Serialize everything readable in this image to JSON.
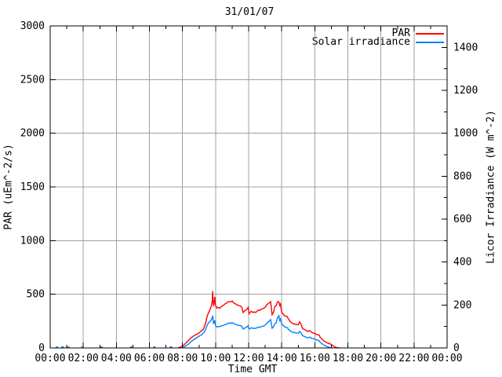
{
  "title": "31/01/07",
  "colors": {
    "par_line": "#ff0000",
    "solar_line": "#0080ff",
    "grid": "#a0a0a0",
    "axis": "#000000",
    "background": "#ffffff"
  },
  "chart_data": {
    "type": "line",
    "title": "31/01/07",
    "xlabel": "Time GMT",
    "ylabel_left": "PAR (uEm^-2/s)",
    "ylabel_right": "Licor Irradiance (W m^-2)",
    "x_range_hours": [
      0,
      24
    ],
    "x_major_step_hours": 2,
    "x_minor_step_hours": 1,
    "x_tick_labels": [
      "00:00",
      "02:00",
      "04:00",
      "06:00",
      "08:00",
      "10:00",
      "12:00",
      "14:00",
      "16:00",
      "18:00",
      "20:00",
      "22:00",
      "00:00"
    ],
    "y_left": {
      "range": [
        0,
        3000
      ],
      "ticks": [
        0,
        500,
        1000,
        1500,
        2000,
        2500,
        3000
      ]
    },
    "y_right": {
      "range": [
        0,
        1500
      ],
      "ticks": [
        0,
        200,
        400,
        600,
        800,
        1000,
        1200,
        1400
      ],
      "minor_step": 100
    },
    "grid": {
      "vertical_step_hours": 2,
      "horizontal_step_left_units": 500,
      "color": "#a0a0a0"
    },
    "legend_position": "top-right-inside",
    "series": [
      {
        "name": "PAR",
        "axis": "left",
        "units": "uEm^-2/s",
        "color": "#ff0000",
        "points": [
          [
            7.75,
            2
          ],
          [
            7.9,
            10
          ],
          [
            8.0,
            18
          ],
          [
            8.17,
            40
          ],
          [
            8.33,
            65
          ],
          [
            8.5,
            92
          ],
          [
            8.67,
            112
          ],
          [
            8.83,
            126
          ],
          [
            9.0,
            140
          ],
          [
            9.08,
            150
          ],
          [
            9.17,
            163
          ],
          [
            9.25,
            172
          ],
          [
            9.33,
            200
          ],
          [
            9.42,
            248
          ],
          [
            9.5,
            300
          ],
          [
            9.58,
            330
          ],
          [
            9.67,
            360
          ],
          [
            9.75,
            395
          ],
          [
            9.8,
            440
          ],
          [
            9.83,
            530
          ],
          [
            9.85,
            430
          ],
          [
            9.88,
            390
          ],
          [
            9.92,
            420
          ],
          [
            9.95,
            475
          ],
          [
            9.98,
            430
          ],
          [
            10.0,
            398
          ],
          [
            10.08,
            372
          ],
          [
            10.17,
            378
          ],
          [
            10.25,
            370
          ],
          [
            10.33,
            385
          ],
          [
            10.42,
            392
          ],
          [
            10.5,
            400
          ],
          [
            10.58,
            412
          ],
          [
            10.67,
            418
          ],
          [
            10.75,
            428
          ],
          [
            10.83,
            432
          ],
          [
            10.92,
            428
          ],
          [
            11.0,
            438
          ],
          [
            11.08,
            424
          ],
          [
            11.17,
            412
          ],
          [
            11.25,
            408
          ],
          [
            11.33,
            398
          ],
          [
            11.42,
            395
          ],
          [
            11.5,
            390
          ],
          [
            11.58,
            382
          ],
          [
            11.67,
            330
          ],
          [
            11.75,
            345
          ],
          [
            11.83,
            352
          ],
          [
            11.92,
            365
          ],
          [
            11.97,
            378
          ],
          [
            12.03,
            318
          ],
          [
            12.08,
            330
          ],
          [
            12.17,
            342
          ],
          [
            12.25,
            330
          ],
          [
            12.33,
            336
          ],
          [
            12.42,
            330
          ],
          [
            12.5,
            340
          ],
          [
            12.58,
            352
          ],
          [
            12.67,
            350
          ],
          [
            12.75,
            360
          ],
          [
            12.83,
            365
          ],
          [
            12.92,
            370
          ],
          [
            13.0,
            378
          ],
          [
            13.08,
            400
          ],
          [
            13.17,
            412
          ],
          [
            13.25,
            420
          ],
          [
            13.33,
            430
          ],
          [
            13.42,
            310
          ],
          [
            13.5,
            330
          ],
          [
            13.58,
            385
          ],
          [
            13.67,
            395
          ],
          [
            13.75,
            430
          ],
          [
            13.83,
            428
          ],
          [
            13.88,
            395
          ],
          [
            13.92,
            408
          ],
          [
            14.0,
            330
          ],
          [
            14.08,
            318
          ],
          [
            14.17,
            300
          ],
          [
            14.25,
            295
          ],
          [
            14.33,
            292
          ],
          [
            14.42,
            268
          ],
          [
            14.5,
            248
          ],
          [
            14.58,
            238
          ],
          [
            14.67,
            228
          ],
          [
            14.75,
            225
          ],
          [
            14.83,
            220
          ],
          [
            14.92,
            218
          ],
          [
            15.0,
            216
          ],
          [
            15.08,
            244
          ],
          [
            15.17,
            222
          ],
          [
            15.25,
            185
          ],
          [
            15.33,
            175
          ],
          [
            15.42,
            168
          ],
          [
            15.5,
            158
          ],
          [
            15.58,
            152
          ],
          [
            15.67,
            163
          ],
          [
            15.75,
            155
          ],
          [
            15.83,
            142
          ],
          [
            15.92,
            140
          ],
          [
            16.0,
            136
          ],
          [
            16.08,
            126
          ],
          [
            16.17,
            124
          ],
          [
            16.25,
            122
          ],
          [
            16.33,
            98
          ],
          [
            16.42,
            85
          ],
          [
            16.5,
            72
          ],
          [
            16.58,
            62
          ],
          [
            16.67,
            55
          ],
          [
            16.75,
            48
          ],
          [
            16.83,
            42
          ],
          [
            16.92,
            38
          ],
          [
            17.0,
            32
          ],
          [
            17.08,
            22
          ],
          [
            17.17,
            12
          ],
          [
            17.25,
            7
          ],
          [
            17.33,
            3
          ],
          [
            17.42,
            1
          ],
          [
            17.5,
            0
          ]
        ]
      },
      {
        "name": "Solar irradiance",
        "axis": "right",
        "units": "W m^-2",
        "color": "#0080ff",
        "points": [
          [
            8.0,
            2
          ],
          [
            8.17,
            8
          ],
          [
            8.33,
            16
          ],
          [
            8.5,
            28
          ],
          [
            8.67,
            38
          ],
          [
            8.83,
            46
          ],
          [
            9.0,
            55
          ],
          [
            9.17,
            62
          ],
          [
            9.33,
            76
          ],
          [
            9.42,
            90
          ],
          [
            9.5,
            108
          ],
          [
            9.58,
            118
          ],
          [
            9.67,
            124
          ],
          [
            9.75,
            132
          ],
          [
            9.83,
            150
          ],
          [
            9.88,
            112
          ],
          [
            9.95,
            128
          ],
          [
            10.0,
            103
          ],
          [
            10.08,
            98
          ],
          [
            10.17,
            100
          ],
          [
            10.25,
            99
          ],
          [
            10.33,
            102
          ],
          [
            10.42,
            104
          ],
          [
            10.5,
            106
          ],
          [
            10.58,
            109
          ],
          [
            10.67,
            111
          ],
          [
            10.75,
            114
          ],
          [
            10.83,
            116
          ],
          [
            10.92,
            115
          ],
          [
            11.0,
            118
          ],
          [
            11.08,
            114
          ],
          [
            11.17,
            111
          ],
          [
            11.25,
            109
          ],
          [
            11.33,
            106
          ],
          [
            11.42,
            105
          ],
          [
            11.5,
            104
          ],
          [
            11.58,
            102
          ],
          [
            11.67,
            88
          ],
          [
            11.75,
            92
          ],
          [
            11.83,
            95
          ],
          [
            11.92,
            99
          ],
          [
            11.97,
            104
          ],
          [
            12.03,
            88
          ],
          [
            12.08,
            90
          ],
          [
            12.17,
            94
          ],
          [
            12.25,
            91
          ],
          [
            12.33,
            92
          ],
          [
            12.42,
            91
          ],
          [
            12.5,
            94
          ],
          [
            12.58,
            97
          ],
          [
            12.67,
            96
          ],
          [
            12.75,
            99
          ],
          [
            12.83,
            101
          ],
          [
            12.92,
            103
          ],
          [
            13.0,
            106
          ],
          [
            13.08,
            114
          ],
          [
            13.17,
            120
          ],
          [
            13.25,
            126
          ],
          [
            13.33,
            132
          ],
          [
            13.42,
            92
          ],
          [
            13.5,
            98
          ],
          [
            13.58,
            112
          ],
          [
            13.67,
            118
          ],
          [
            13.75,
            142
          ],
          [
            13.83,
            150
          ],
          [
            13.88,
            128
          ],
          [
            13.92,
            135
          ],
          [
            14.0,
            110
          ],
          [
            14.08,
            106
          ],
          [
            14.17,
            99
          ],
          [
            14.25,
            96
          ],
          [
            14.33,
            95
          ],
          [
            14.42,
            86
          ],
          [
            14.5,
            80
          ],
          [
            14.58,
            76
          ],
          [
            14.67,
            73
          ],
          [
            14.75,
            72
          ],
          [
            14.83,
            70
          ],
          [
            14.92,
            69
          ],
          [
            15.0,
            68
          ],
          [
            15.08,
            77
          ],
          [
            15.17,
            70
          ],
          [
            15.25,
            58
          ],
          [
            15.33,
            55
          ],
          [
            15.42,
            52
          ],
          [
            15.5,
            49
          ],
          [
            15.58,
            47
          ],
          [
            15.67,
            50
          ],
          [
            15.75,
            48
          ],
          [
            15.83,
            44
          ],
          [
            15.92,
            43
          ],
          [
            16.0,
            42
          ],
          [
            16.08,
            38
          ],
          [
            16.17,
            36
          ],
          [
            16.25,
            34
          ],
          [
            16.33,
            26
          ],
          [
            16.42,
            21
          ],
          [
            16.5,
            16
          ],
          [
            16.58,
            12
          ],
          [
            16.67,
            9
          ],
          [
            16.75,
            6
          ],
          [
            16.83,
            4
          ],
          [
            16.92,
            2
          ],
          [
            17.0,
            0
          ]
        ],
        "early_morning_blips": [
          [
            0.4,
            3
          ],
          [
            0.75,
            4
          ],
          [
            1.1,
            3
          ],
          [
            1.95,
            3
          ],
          [
            3.1,
            3
          ],
          [
            4.9,
            3
          ],
          [
            6.3,
            3
          ],
          [
            7.3,
            4
          ]
        ]
      }
    ]
  }
}
